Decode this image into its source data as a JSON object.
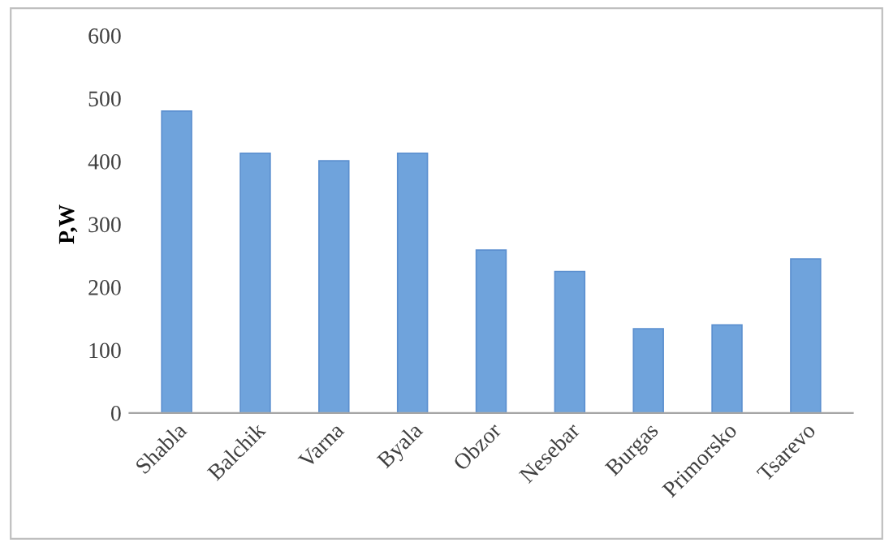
{
  "chart_data": {
    "type": "bar",
    "ylabel": "P,W",
    "categories": [
      "Shabla",
      "Balchik",
      "Varna",
      "Byala",
      "Obzor",
      "Nesebar",
      "Burgas",
      "Primorsko",
      "Tsarevo"
    ],
    "values": [
      480,
      413,
      401,
      413,
      259,
      225,
      134,
      140,
      245
    ],
    "color": "#6fa3dc",
    "ylim": [
      0,
      600
    ],
    "yticks": [
      0,
      100,
      200,
      300,
      400,
      500,
      600
    ],
    "grid": false
  }
}
